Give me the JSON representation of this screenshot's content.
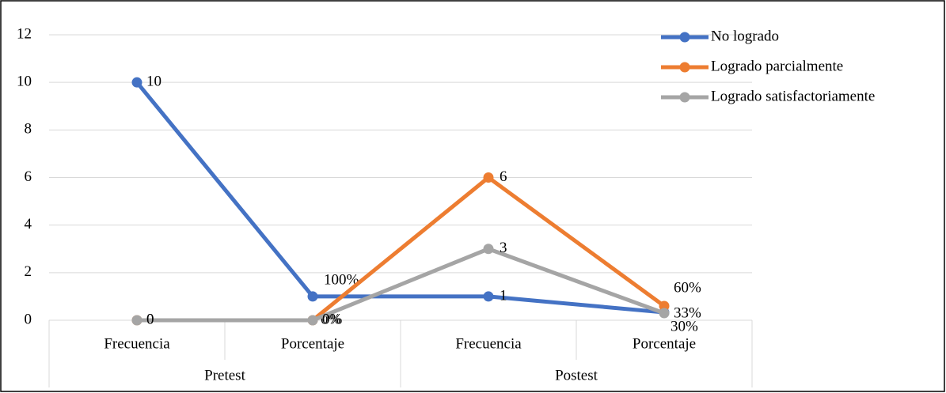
{
  "chart_data": {
    "type": "line",
    "categories": [
      "Frecuencia",
      "Porcentaje",
      "Frecuencia",
      "Porcentaje"
    ],
    "groups": [
      "Pretest",
      "Postest"
    ],
    "series": [
      {
        "name": "No logrado",
        "color": "#4472c4",
        "values": [
          10,
          1,
          1,
          0.33
        ],
        "value_labels": [
          "10",
          "100%",
          "1",
          "33%"
        ]
      },
      {
        "name": "Logrado parcialmente",
        "color": "#ed7d31",
        "values": [
          0,
          0,
          6,
          0.6
        ],
        "value_labels": [
          "0",
          "0%",
          "6",
          "60%"
        ]
      },
      {
        "name": "Logrado satisfactoriamente",
        "color": "#a5a5a5",
        "values": [
          0,
          0,
          3,
          0.3
        ],
        "value_labels": [
          "0",
          "0%",
          "3",
          "30%"
        ]
      }
    ],
    "ylim": [
      0,
      12
    ],
    "yticks": [
      0,
      2,
      4,
      6,
      8,
      10,
      12
    ],
    "grid": true,
    "legend": "top-right"
  }
}
